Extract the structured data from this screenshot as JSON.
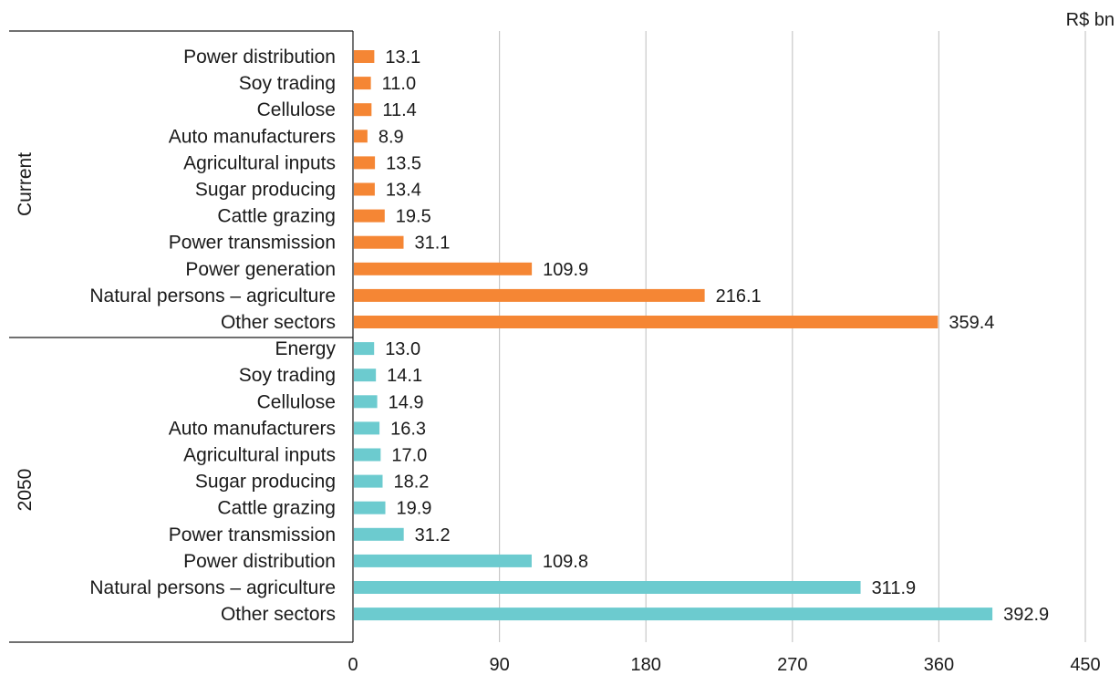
{
  "chart_data": {
    "type": "bar",
    "orientation": "horizontal",
    "unit_label": "R$ bn",
    "xlim": [
      0,
      450
    ],
    "x_ticks": [
      0,
      90,
      180,
      270,
      360,
      450
    ],
    "grid": "vertical",
    "groups": [
      {
        "name": "Current",
        "color": "#F58634",
        "categories": [
          "Power distribution",
          "Soy trading",
          "Cellulose",
          "Auto manufacturers",
          "Agricultural inputs",
          "Sugar producing",
          "Cattle grazing",
          "Power transmission",
          "Power generation",
          "Natural persons – agriculture",
          "Other sectors"
        ],
        "values": [
          13.1,
          11.0,
          11.4,
          8.9,
          13.5,
          13.4,
          19.5,
          31.1,
          109.9,
          216.1,
          359.4
        ],
        "value_labels": [
          "13.1",
          "11.0",
          "11.4",
          "8.9",
          "13.5",
          "13.4",
          "19.5",
          "31.1",
          "109.9",
          "216.1",
          "359.4"
        ]
      },
      {
        "name": "2050",
        "color": "#6CCBCF",
        "categories": [
          "Energy",
          "Soy trading",
          "Cellulose",
          "Auto manufacturers",
          "Agricultural inputs",
          "Sugar producing",
          "Cattle grazing",
          "Power transmission",
          "Power distribution",
          "Natural persons – agriculture",
          "Other sectors"
        ],
        "values": [
          13.0,
          14.1,
          14.9,
          16.3,
          17.0,
          18.2,
          19.9,
          31.2,
          109.8,
          311.9,
          392.9
        ],
        "value_labels": [
          "13.0",
          "14.1",
          "14.9",
          "16.3",
          "17.0",
          "18.2",
          "19.9",
          "31.2",
          "109.8",
          "311.9",
          "392.9"
        ]
      }
    ]
  }
}
